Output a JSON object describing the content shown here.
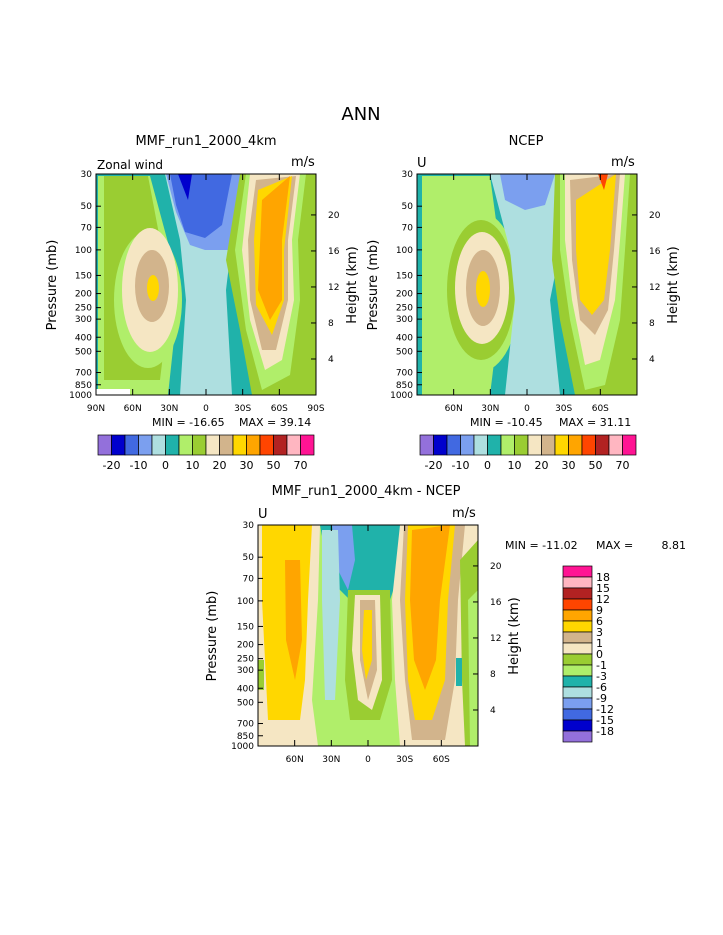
{
  "figure": {
    "title": "ANN"
  },
  "chart_data": [
    {
      "type": "heatmap",
      "panel": "model",
      "title": "MMF_run1_2000_4km",
      "left_label": "Zonal wind",
      "units": "m/s",
      "ylabel": "Pressure (mb)",
      "right_label": "Height (km)",
      "x_ticks": [
        "90N",
        "60N",
        "30N",
        "0",
        "30S",
        "60S",
        "90S"
      ],
      "y_ticks": [
        "30",
        "50",
        "70",
        "100",
        "150",
        "200",
        "250",
        "300",
        "400",
        "500",
        "700",
        "850",
        "1000"
      ],
      "height_ticks": [
        "20",
        "16",
        "12",
        "8",
        "4"
      ],
      "min_label": "MIN = -16.65",
      "max_label": "MAX = 39.14",
      "min": -16.65,
      "max": 39.14,
      "colorbar_labels": [
        "-20",
        "-10",
        "0",
        "10",
        "20",
        "30",
        "50",
        "70"
      ],
      "colorbar_colors": [
        "#9370DB",
        "#0000CD",
        "#4169E1",
        "#7B9FEF",
        "#AEDFE0",
        "#20B2AA",
        "#B0EE6A",
        "#9ACD32",
        "#F5E6C3",
        "#D2B48C",
        "#FFD700",
        "#FFA500",
        "#FF4500",
        "#B22222",
        "#FFB6C1",
        "#FF1493"
      ]
    },
    {
      "type": "heatmap",
      "panel": "obs",
      "title": "NCEP",
      "left_label": "U",
      "units": "m/s",
      "ylabel": "Pressure (mb)",
      "right_label": "Height (km)",
      "x_ticks": [
        "60N",
        "30N",
        "0",
        "30S",
        "60S"
      ],
      "y_ticks": [
        "30",
        "50",
        "70",
        "100",
        "150",
        "200",
        "250",
        "300",
        "400",
        "500",
        "700",
        "850",
        "1000"
      ],
      "height_ticks": [
        "20",
        "16",
        "12",
        "8",
        "4"
      ],
      "min_label": "MIN = -10.45",
      "max_label": "MAX = 31.11",
      "min": -10.45,
      "max": 31.11,
      "colorbar_labels": [
        "-20",
        "-10",
        "0",
        "10",
        "20",
        "30",
        "50",
        "70"
      ],
      "colorbar_colors": [
        "#9370DB",
        "#0000CD",
        "#4169E1",
        "#7B9FEF",
        "#AEDFE0",
        "#20B2AA",
        "#B0EE6A",
        "#9ACD32",
        "#F5E6C3",
        "#D2B48C",
        "#FFD700",
        "#FFA500",
        "#FF4500",
        "#B22222",
        "#FFB6C1",
        "#FF1493"
      ]
    },
    {
      "type": "heatmap",
      "panel": "diff",
      "title": "MMF_run1_2000_4km - NCEP",
      "left_label": "U",
      "units": "m/s",
      "ylabel": "Pressure (mb)",
      "right_label": "Height (km)",
      "x_ticks": [
        "60N",
        "30N",
        "0",
        "30S",
        "60S"
      ],
      "y_ticks": [
        "30",
        "50",
        "70",
        "100",
        "150",
        "200",
        "250",
        "300",
        "400",
        "500",
        "700",
        "850",
        "1000"
      ],
      "height_ticks": [
        "20",
        "16",
        "12",
        "8",
        "4"
      ],
      "min_label": "MIN = -11.02",
      "max_label": "MAX =",
      "max_value_label": "8.81",
      "min": -11.02,
      "max": 8.81,
      "colorbar_labels": [
        "18",
        "15",
        "12",
        "9",
        "6",
        "3",
        "1",
        "0",
        "-1",
        "-3",
        "-6",
        "-9",
        "-12",
        "-15",
        "-18"
      ],
      "colorbar_colors": [
        "#FF1493",
        "#FFB6C1",
        "#B22222",
        "#FF4500",
        "#FFA500",
        "#FFD700",
        "#D2B48C",
        "#F5E6C3",
        "#9ACD32",
        "#B0EE6A",
        "#20B2AA",
        "#AEDFE0",
        "#7B9FEF",
        "#4169E1",
        "#0000CD",
        "#9370DB"
      ]
    }
  ]
}
